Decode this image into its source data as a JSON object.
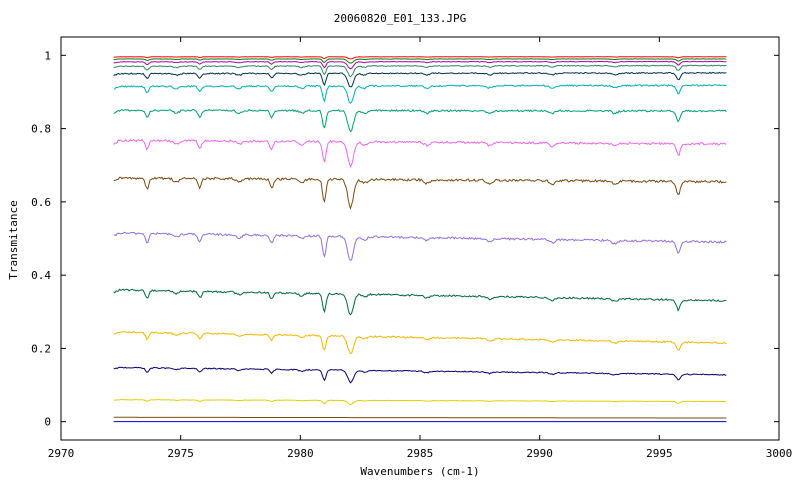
{
  "chart_data": {
    "type": "line",
    "title": "20060820_E01_133.JPG",
    "xlabel": "Wavenumbers (cm-1)",
    "ylabel": "Transmitance",
    "xlim": [
      2970,
      3000
    ],
    "ylim": [
      -0.05,
      1.05
    ],
    "x_ticks": [
      2970,
      2975,
      2980,
      2985,
      2990,
      2995,
      3000
    ],
    "x_tick_labels": [
      "2970",
      "2975",
      "2980",
      "2985",
      "2990",
      "2995",
      "3000"
    ],
    "y_ticks": [
      0,
      0.2,
      0.4,
      0.6,
      0.8,
      1
    ],
    "y_tick_labels": [
      "0",
      "0.2",
      "0.4",
      "0.6",
      "0.8",
      "1"
    ],
    "grid": false,
    "legend": "none",
    "x_range": [
      2972.2,
      2997.8
    ],
    "absorption_lines": [
      2973.6,
      2975.8,
      2978.8,
      2981.0,
      2982.1,
      2995.8
    ],
    "series": [
      {
        "color": "#0000cc",
        "baseline_start": 0.0,
        "baseline_end": 0.0,
        "depth": 0.0
      },
      {
        "color": "#7a4a10",
        "baseline_start": 0.012,
        "baseline_end": 0.01,
        "depth": 0.0
      },
      {
        "color": "#e0d000",
        "baseline_start": 0.06,
        "baseline_end": 0.055,
        "depth": 0.012
      },
      {
        "color": "#000070",
        "baseline_start": 0.148,
        "baseline_end": 0.128,
        "depth": 0.035
      },
      {
        "color": "#f0b800",
        "baseline_start": 0.245,
        "baseline_end": 0.215,
        "depth": 0.05
      },
      {
        "color": "#006838",
        "baseline_start": 0.36,
        "baseline_end": 0.33,
        "depth": 0.06
      },
      {
        "color": "#9370db",
        "baseline_start": 0.515,
        "baseline_end": 0.49,
        "depth": 0.07
      },
      {
        "color": "#7a4a10",
        "baseline_start": 0.665,
        "baseline_end": 0.655,
        "depth": 0.08
      },
      {
        "color": "#ee66ee",
        "baseline_start": 0.768,
        "baseline_end": 0.758,
        "depth": 0.07
      },
      {
        "color": "#00a070",
        "baseline_start": 0.85,
        "baseline_end": 0.848,
        "depth": 0.06
      },
      {
        "color": "#00b0b0",
        "baseline_start": 0.915,
        "baseline_end": 0.918,
        "depth": 0.05
      },
      {
        "color": "#003050",
        "baseline_start": 0.95,
        "baseline_end": 0.952,
        "depth": 0.04
      },
      {
        "color": "#2e8b57",
        "baseline_start": 0.97,
        "baseline_end": 0.972,
        "depth": 0.03
      },
      {
        "color": "#b000b0",
        "baseline_start": 0.982,
        "baseline_end": 0.983,
        "depth": 0.02
      },
      {
        "color": "#008000",
        "baseline_start": 0.99,
        "baseline_end": 0.99,
        "depth": 0.012
      },
      {
        "color": "#ff0000",
        "baseline_start": 0.996,
        "baseline_end": 0.996,
        "depth": 0.006
      }
    ]
  }
}
